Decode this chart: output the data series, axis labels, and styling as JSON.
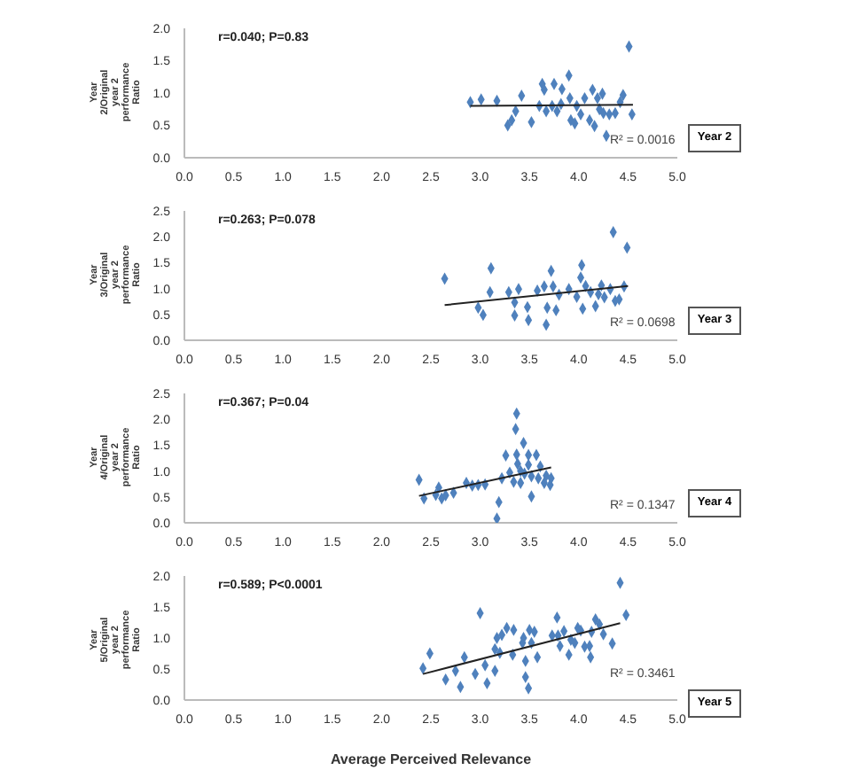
{
  "chart_data": [
    {
      "type": "scatter",
      "ylabel": "Year 2/Original year 2 performance Ratio",
      "annotations": [
        "r=0.040; P=0.83",
        "R² = 0.0016",
        "Year 2"
      ],
      "xlim": [
        0,
        5
      ],
      "xticks": [
        {
          "value": 0,
          "label": "0.0"
        },
        {
          "value": 0.5,
          "label": "0.5"
        },
        {
          "value": 1,
          "label": "1.0"
        },
        {
          "value": 1.5,
          "label": "1.5"
        },
        {
          "value": 2,
          "label": "2.0"
        },
        {
          "value": 2.5,
          "label": "2.5"
        },
        {
          "value": 3,
          "label": "3.0"
        },
        {
          "value": 3.5,
          "label": "3.5"
        },
        {
          "value": 4,
          "label": "4.0"
        },
        {
          "value": 4.5,
          "label": "4.5"
        },
        {
          "value": 5,
          "label": "5.0"
        }
      ],
      "ylim": [
        0,
        2
      ],
      "yticks": [
        {
          "value": 0,
          "label": "0.0"
        },
        {
          "value": 0.5,
          "label": "0.5"
        },
        {
          "value": 1,
          "label": "1.0"
        },
        {
          "value": 1.5,
          "label": "1.5"
        },
        {
          "value": 2,
          "label": "2.0"
        }
      ],
      "grid": false,
      "marker": "diamond",
      "series": [
        {
          "color": "#4f81bd",
          "x": [
            2.9,
            3.01,
            3.17,
            3.28,
            3.32,
            3.36,
            3.42,
            3.52,
            3.6,
            3.63,
            3.65,
            3.67,
            3.73,
            3.75,
            3.78,
            3.82,
            3.83,
            3.9,
            3.91,
            3.92,
            3.96,
            3.98,
            4.02,
            4.06,
            4.11,
            4.14,
            4.16,
            4.19,
            4.21,
            4.24,
            4.25,
            4.28,
            4.31,
            4.37,
            4.42,
            4.45,
            4.51,
            4.54
          ],
          "values": [
            0.86,
            0.9,
            0.88,
            0.5,
            0.58,
            0.72,
            0.96,
            0.55,
            0.8,
            1.14,
            1.05,
            0.72,
            0.8,
            1.14,
            0.72,
            0.83,
            1.06,
            1.27,
            0.92,
            0.58,
            0.53,
            0.8,
            0.67,
            0.92,
            0.58,
            1.05,
            0.49,
            0.92,
            0.75,
            0.99,
            0.69,
            0.34,
            0.67,
            0.69,
            0.86,
            0.97,
            1.72,
            0.67
          ]
        },
        {
          "type": "line",
          "marker": "none",
          "color": "#222222",
          "x": [
            2.9,
            4.55
          ],
          "values": [
            0.8,
            0.82
          ]
        }
      ]
    },
    {
      "type": "scatter",
      "ylabel": "Year 3/Original year 2 performance Ratio",
      "annotations": [
        "r=0.263; P=0.078",
        "R² = 0.0698",
        "Year 3"
      ],
      "xlim": [
        0,
        5
      ],
      "xticks": [
        {
          "value": 0,
          "label": "0.0"
        },
        {
          "value": 0.5,
          "label": "0.5"
        },
        {
          "value": 1,
          "label": "1.0"
        },
        {
          "value": 1.5,
          "label": "1.5"
        },
        {
          "value": 2,
          "label": "2.0"
        },
        {
          "value": 2.5,
          "label": "2.5"
        },
        {
          "value": 3,
          "label": "3.0"
        },
        {
          "value": 3.5,
          "label": "3.5"
        },
        {
          "value": 4,
          "label": "4.0"
        },
        {
          "value": 4.5,
          "label": "4.5"
        },
        {
          "value": 5,
          "label": "5.0"
        }
      ],
      "ylim": [
        0,
        2.5
      ],
      "yticks": [
        {
          "value": 0,
          "label": "0.0"
        },
        {
          "value": 0.5,
          "label": "0.5"
        },
        {
          "value": 1,
          "label": "1.0"
        },
        {
          "value": 1.5,
          "label": "1.5"
        },
        {
          "value": 2,
          "label": "2.0"
        },
        {
          "value": 2.5,
          "label": "2.5"
        }
      ],
      "grid": false,
      "marker": "diamond",
      "series": [
        {
          "color": "#4f81bd",
          "x": [
            2.64,
            2.98,
            3.03,
            3.1,
            3.11,
            3.29,
            3.35,
            3.35,
            3.39,
            3.48,
            3.49,
            3.58,
            3.65,
            3.67,
            3.68,
            3.72,
            3.74,
            3.77,
            3.8,
            3.9,
            3.98,
            4.02,
            4.03,
            4.04,
            4.07,
            4.12,
            4.17,
            4.2,
            4.23,
            4.26,
            4.32,
            4.35,
            4.37,
            4.41,
            4.46,
            4.49
          ],
          "values": [
            1.19,
            0.63,
            0.49,
            0.93,
            1.39,
            0.93,
            0.73,
            0.48,
            0.99,
            0.64,
            0.39,
            0.96,
            1.04,
            0.3,
            0.63,
            1.34,
            1.04,
            0.58,
            0.88,
            0.99,
            0.84,
            1.21,
            1.45,
            0.61,
            1.05,
            0.93,
            0.66,
            0.89,
            1.06,
            0.83,
            0.99,
            2.09,
            0.76,
            0.79,
            1.04,
            1.79
          ]
        },
        {
          "type": "line",
          "marker": "none",
          "color": "#222222",
          "x": [
            2.64,
            4.5
          ],
          "values": [
            0.68,
            1.05
          ]
        }
      ]
    },
    {
      "type": "scatter",
      "ylabel": "Year 4/Original year 2 performance Ratio",
      "annotations": [
        "r=0.367; P=0.04",
        "R² = 0.1347",
        "Year 4"
      ],
      "xlim": [
        0,
        5
      ],
      "xticks": [
        {
          "value": 0,
          "label": "0.0"
        },
        {
          "value": 0.5,
          "label": "0.5"
        },
        {
          "value": 1,
          "label": "1.0"
        },
        {
          "value": 1.5,
          "label": "1.5"
        },
        {
          "value": 2,
          "label": "2.0"
        },
        {
          "value": 2.5,
          "label": "2.5"
        },
        {
          "value": 3,
          "label": "3.0"
        },
        {
          "value": 3.5,
          "label": "3.5"
        },
        {
          "value": 4,
          "label": "4.0"
        },
        {
          "value": 4.5,
          "label": "4.5"
        },
        {
          "value": 5,
          "label": "5.0"
        }
      ],
      "ylim": [
        0,
        2.5
      ],
      "yticks": [
        {
          "value": 0,
          "label": "0.0"
        },
        {
          "value": 0.5,
          "label": "0.5"
        },
        {
          "value": 1,
          "label": "1.0"
        },
        {
          "value": 1.5,
          "label": "1.5"
        },
        {
          "value": 2,
          "label": "2.0"
        },
        {
          "value": 2.5,
          "label": "2.5"
        }
      ],
      "grid": false,
      "marker": "diamond",
      "series": [
        {
          "color": "#4f81bd",
          "x": [
            2.38,
            2.43,
            2.58,
            2.55,
            2.61,
            2.65,
            2.73,
            2.86,
            2.92,
            2.98,
            3.05,
            3.19,
            3.17,
            3.22,
            3.26,
            3.3,
            3.34,
            3.37,
            3.36,
            3.37,
            3.38,
            3.41,
            3.41,
            3.44,
            3.45,
            3.49,
            3.49,
            3.52,
            3.52,
            3.57,
            3.59,
            3.61,
            3.65,
            3.67,
            3.71,
            3.72
          ],
          "values": [
            0.83,
            0.47,
            0.68,
            0.54,
            0.47,
            0.53,
            0.58,
            0.77,
            0.72,
            0.73,
            0.74,
            0.4,
            0.08,
            0.86,
            1.3,
            0.97,
            0.79,
            2.11,
            1.81,
            1.32,
            1.14,
            1.0,
            0.77,
            1.54,
            0.95,
            1.31,
            1.12,
            0.9,
            0.51,
            1.31,
            0.86,
            1.09,
            0.77,
            0.91,
            0.73,
            0.86
          ]
        },
        {
          "type": "line",
          "marker": "none",
          "color": "#222222",
          "x": [
            2.38,
            3.72
          ],
          "values": [
            0.52,
            1.07
          ]
        }
      ]
    },
    {
      "type": "scatter",
      "ylabel": "Year 5/Original year 2 performance Ratio",
      "xlabel": "Average Perceived Relevance",
      "annotations": [
        "r=0.589; P<0.0001",
        "R² = 0.3461",
        "Year 5"
      ],
      "xlim": [
        0,
        5
      ],
      "xticks": [
        {
          "value": 0,
          "label": "0.0"
        },
        {
          "value": 0.5,
          "label": "0.5"
        },
        {
          "value": 1,
          "label": "1.0"
        },
        {
          "value": 1.5,
          "label": "1.5"
        },
        {
          "value": 2,
          "label": "2.0"
        },
        {
          "value": 2.5,
          "label": "2.5"
        },
        {
          "value": 3,
          "label": "3.0"
        },
        {
          "value": 3.5,
          "label": "3.5"
        },
        {
          "value": 4,
          "label": "4.0"
        },
        {
          "value": 4.5,
          "label": "4.5"
        },
        {
          "value": 5,
          "label": "5.0"
        }
      ],
      "ylim": [
        0,
        2
      ],
      "yticks": [
        {
          "value": 0,
          "label": "0.0"
        },
        {
          "value": 0.5,
          "label": "0.5"
        },
        {
          "value": 1,
          "label": "1.0"
        },
        {
          "value": 1.5,
          "label": "1.5"
        },
        {
          "value": 2,
          "label": "2.0"
        }
      ],
      "grid": false,
      "marker": "diamond",
      "series": [
        {
          "color": "#4f81bd",
          "x": [
            2.42,
            2.49,
            2.65,
            2.75,
            2.8,
            2.84,
            2.95,
            3.0,
            3.05,
            3.07,
            3.15,
            3.15,
            3.17,
            3.2,
            3.22,
            3.27,
            3.33,
            3.34,
            3.43,
            3.44,
            3.46,
            3.46,
            3.49,
            3.5,
            3.52,
            3.55,
            3.58,
            3.73,
            3.78,
            3.79,
            3.81,
            3.85,
            3.9,
            3.92,
            3.96,
            3.99,
            4.02,
            4.06,
            4.11,
            4.12,
            4.13,
            4.17,
            4.21,
            4.25,
            4.34,
            4.42,
            4.48
          ],
          "values": [
            0.51,
            0.75,
            0.33,
            0.47,
            0.21,
            0.69,
            0.42,
            1.4,
            0.56,
            0.27,
            0.82,
            0.47,
            1.0,
            0.76,
            1.05,
            1.16,
            0.73,
            1.13,
            0.92,
            1.0,
            0.63,
            0.37,
            0.19,
            1.13,
            0.92,
            1.1,
            0.69,
            1.04,
            1.33,
            1.04,
            0.87,
            1.11,
            0.73,
            0.97,
            0.92,
            1.16,
            1.12,
            0.86,
            0.87,
            0.69,
            1.1,
            1.3,
            1.22,
            1.06,
            0.91,
            1.89,
            1.37
          ]
        },
        {
          "type": "line",
          "marker": "none",
          "color": "#222222",
          "x": [
            2.42,
            4.42
          ],
          "values": [
            0.42,
            1.24
          ]
        }
      ]
    }
  ]
}
